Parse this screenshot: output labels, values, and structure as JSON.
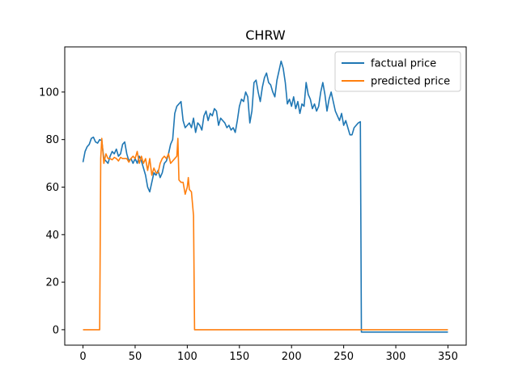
{
  "chart_data": {
    "type": "line",
    "title": "CHRW",
    "xlabel": "",
    "ylabel": "",
    "xlim": [
      -17.5,
      367.5
    ],
    "ylim": [
      -6.5,
      119
    ],
    "xticks": [
      0,
      50,
      100,
      150,
      200,
      250,
      300,
      350
    ],
    "yticks": [
      0,
      20,
      40,
      60,
      80,
      100
    ],
    "grid": false,
    "legend": {
      "placement": "top-right"
    },
    "series": [
      {
        "name": "factual price",
        "color": "#1f77b4",
        "points": [
          [
            0,
            70.5
          ],
          [
            2,
            75
          ],
          [
            4,
            77
          ],
          [
            6,
            78
          ],
          [
            8,
            80.5
          ],
          [
            10,
            81
          ],
          [
            12,
            79
          ],
          [
            14,
            78.5
          ],
          [
            16,
            80
          ],
          [
            18,
            79.5
          ],
          [
            20,
            72
          ],
          [
            22,
            71
          ],
          [
            24,
            70
          ],
          [
            26,
            73
          ],
          [
            28,
            75
          ],
          [
            30,
            74
          ],
          [
            32,
            76
          ],
          [
            34,
            73
          ],
          [
            36,
            74
          ],
          [
            38,
            78
          ],
          [
            40,
            79
          ],
          [
            42,
            74
          ],
          [
            44,
            71
          ],
          [
            46,
            72
          ],
          [
            48,
            70
          ],
          [
            50,
            72
          ],
          [
            52,
            70
          ],
          [
            54,
            73
          ],
          [
            56,
            71
          ],
          [
            58,
            68
          ],
          [
            60,
            65
          ],
          [
            62,
            60
          ],
          [
            64,
            58
          ],
          [
            66,
            62
          ],
          [
            68,
            66
          ],
          [
            70,
            65
          ],
          [
            72,
            67
          ],
          [
            74,
            64
          ],
          [
            76,
            66
          ],
          [
            78,
            70
          ],
          [
            80,
            71
          ],
          [
            82,
            74
          ],
          [
            84,
            78
          ],
          [
            86,
            80
          ],
          [
            88,
            91
          ],
          [
            90,
            94
          ],
          [
            92,
            95
          ],
          [
            94,
            96
          ],
          [
            96,
            88
          ],
          [
            98,
            85
          ],
          [
            100,
            86
          ],
          [
            102,
            87
          ],
          [
            104,
            85
          ],
          [
            106,
            89
          ],
          [
            108,
            83
          ],
          [
            110,
            87
          ],
          [
            112,
            86
          ],
          [
            114,
            84
          ],
          [
            116,
            90
          ],
          [
            118,
            92
          ],
          [
            120,
            88
          ],
          [
            122,
            91
          ],
          [
            124,
            90
          ],
          [
            126,
            93
          ],
          [
            128,
            92
          ],
          [
            130,
            86
          ],
          [
            132,
            89
          ],
          [
            134,
            88
          ],
          [
            136,
            87
          ],
          [
            138,
            85
          ],
          [
            140,
            86
          ],
          [
            142,
            84
          ],
          [
            144,
            85
          ],
          [
            146,
            83
          ],
          [
            148,
            88
          ],
          [
            150,
            94
          ],
          [
            152,
            97
          ],
          [
            154,
            96
          ],
          [
            156,
            100
          ],
          [
            158,
            98
          ],
          [
            160,
            87
          ],
          [
            162,
            92
          ],
          [
            164,
            104
          ],
          [
            166,
            105
          ],
          [
            168,
            100
          ],
          [
            170,
            96
          ],
          [
            172,
            102
          ],
          [
            174,
            106
          ],
          [
            176,
            108
          ],
          [
            178,
            104
          ],
          [
            180,
            103
          ],
          [
            182,
            100
          ],
          [
            184,
            98
          ],
          [
            186,
            105
          ],
          [
            188,
            109
          ],
          [
            190,
            113
          ],
          [
            192,
            110
          ],
          [
            194,
            104
          ],
          [
            196,
            95
          ],
          [
            198,
            97
          ],
          [
            200,
            94
          ],
          [
            202,
            98
          ],
          [
            204,
            93
          ],
          [
            206,
            96
          ],
          [
            208,
            91
          ],
          [
            210,
            95
          ],
          [
            212,
            94
          ],
          [
            214,
            104
          ],
          [
            216,
            99
          ],
          [
            218,
            97
          ],
          [
            220,
            93
          ],
          [
            222,
            95
          ],
          [
            224,
            92
          ],
          [
            226,
            94
          ],
          [
            228,
            100
          ],
          [
            230,
            104
          ],
          [
            232,
            99
          ],
          [
            234,
            92
          ],
          [
            236,
            97
          ],
          [
            238,
            100
          ],
          [
            240,
            96
          ],
          [
            242,
            92
          ],
          [
            244,
            90
          ],
          [
            246,
            88
          ],
          [
            248,
            91
          ],
          [
            250,
            86
          ],
          [
            252,
            88
          ],
          [
            254,
            85
          ],
          [
            256,
            82
          ],
          [
            258,
            82
          ],
          [
            260,
            85
          ],
          [
            262,
            86
          ],
          [
            264,
            87
          ],
          [
            266,
            87.5
          ],
          [
            267,
            -1
          ],
          [
            350,
            -1
          ]
        ]
      },
      {
        "name": "predicted price",
        "color": "#ff7f0e",
        "points": [
          [
            0,
            0
          ],
          [
            16,
            0
          ],
          [
            17,
            72
          ],
          [
            18,
            80.5
          ],
          [
            20,
            70
          ],
          [
            22,
            74
          ],
          [
            24,
            72
          ],
          [
            26,
            72
          ],
          [
            28,
            71.5
          ],
          [
            30,
            72.5
          ],
          [
            32,
            72
          ],
          [
            34,
            71
          ],
          [
            36,
            72.5
          ],
          [
            38,
            72
          ],
          [
            40,
            72
          ],
          [
            42,
            72
          ],
          [
            44,
            70.5
          ],
          [
            46,
            72
          ],
          [
            48,
            73
          ],
          [
            50,
            72
          ],
          [
            52,
            75
          ],
          [
            54,
            70
          ],
          [
            56,
            73
          ],
          [
            58,
            70
          ],
          [
            60,
            72
          ],
          [
            62,
            67
          ],
          [
            64,
            72
          ],
          [
            66,
            65
          ],
          [
            68,
            68
          ],
          [
            70,
            66
          ],
          [
            72,
            66
          ],
          [
            74,
            70
          ],
          [
            76,
            72
          ],
          [
            78,
            73
          ],
          [
            80,
            72
          ],
          [
            82,
            74
          ],
          [
            84,
            70
          ],
          [
            86,
            71
          ],
          [
            88,
            72
          ],
          [
            90,
            73
          ],
          [
            91,
            80.5
          ],
          [
            92,
            63
          ],
          [
            94,
            62
          ],
          [
            96,
            62
          ],
          [
            98,
            57
          ],
          [
            100,
            60
          ],
          [
            101,
            64
          ],
          [
            102,
            59
          ],
          [
            104,
            58
          ],
          [
            106,
            48
          ],
          [
            107,
            0
          ],
          [
            350,
            0
          ]
        ]
      }
    ]
  }
}
